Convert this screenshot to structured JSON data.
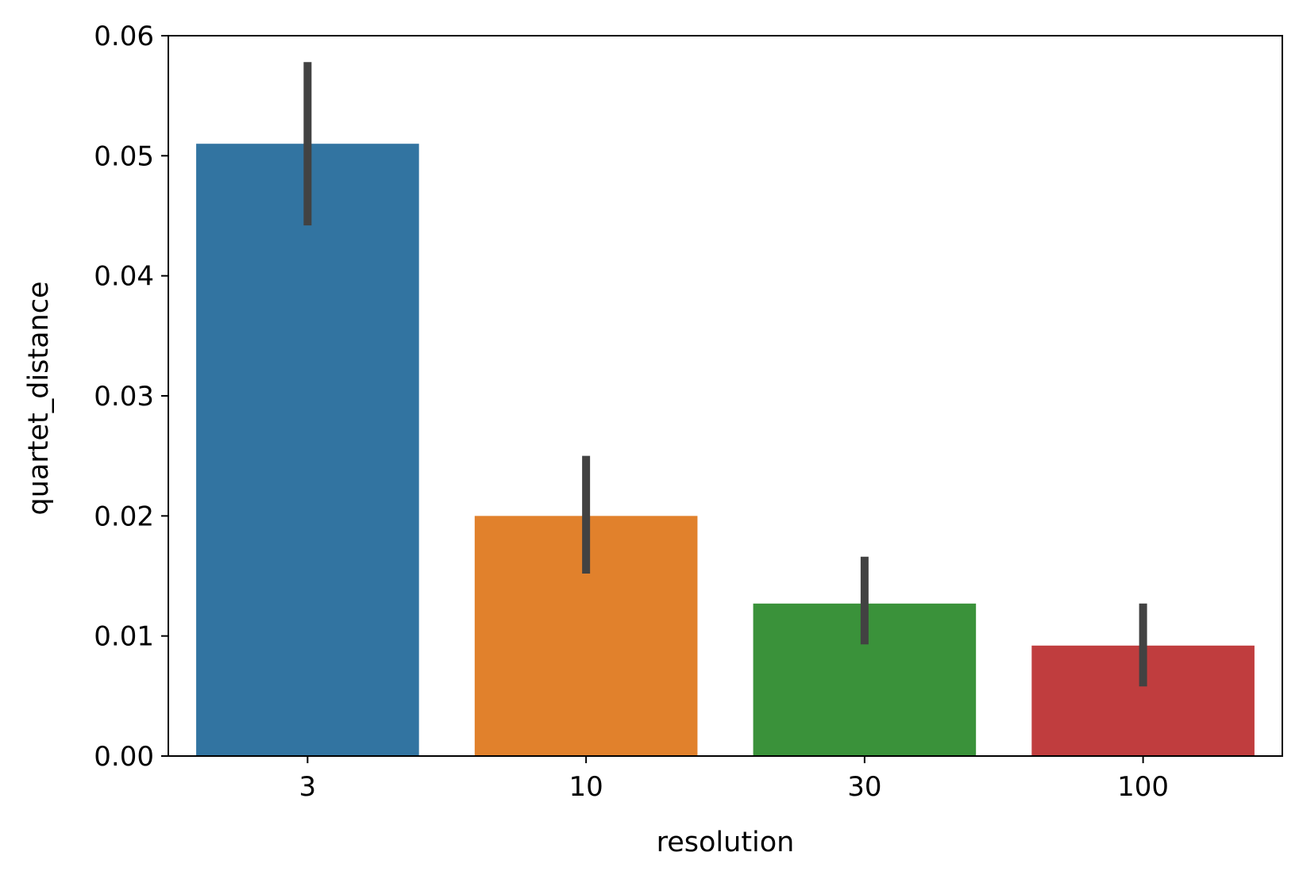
{
  "chart_data": {
    "type": "bar",
    "title": "",
    "xlabel": "resolution",
    "ylabel": "quartet_distance",
    "categories": [
      "3",
      "10",
      "30",
      "100"
    ],
    "values": [
      0.051,
      0.02,
      0.0127,
      0.0092
    ],
    "error_bars": [
      {
        "low": 0.0442,
        "high": 0.0578
      },
      {
        "low": 0.0152,
        "high": 0.025
      },
      {
        "low": 0.0093,
        "high": 0.0166
      },
      {
        "low": 0.0058,
        "high": 0.0127
      }
    ],
    "colors": [
      "#3274a1",
      "#e1812c",
      "#3a923a",
      "#c03d3e"
    ],
    "error_color": "#424242",
    "ylim": [
      0,
      0.06
    ],
    "yticks": [
      "0.00",
      "0.01",
      "0.02",
      "0.03",
      "0.04",
      "0.05",
      "0.06"
    ],
    "grid": false,
    "legend": "none"
  }
}
